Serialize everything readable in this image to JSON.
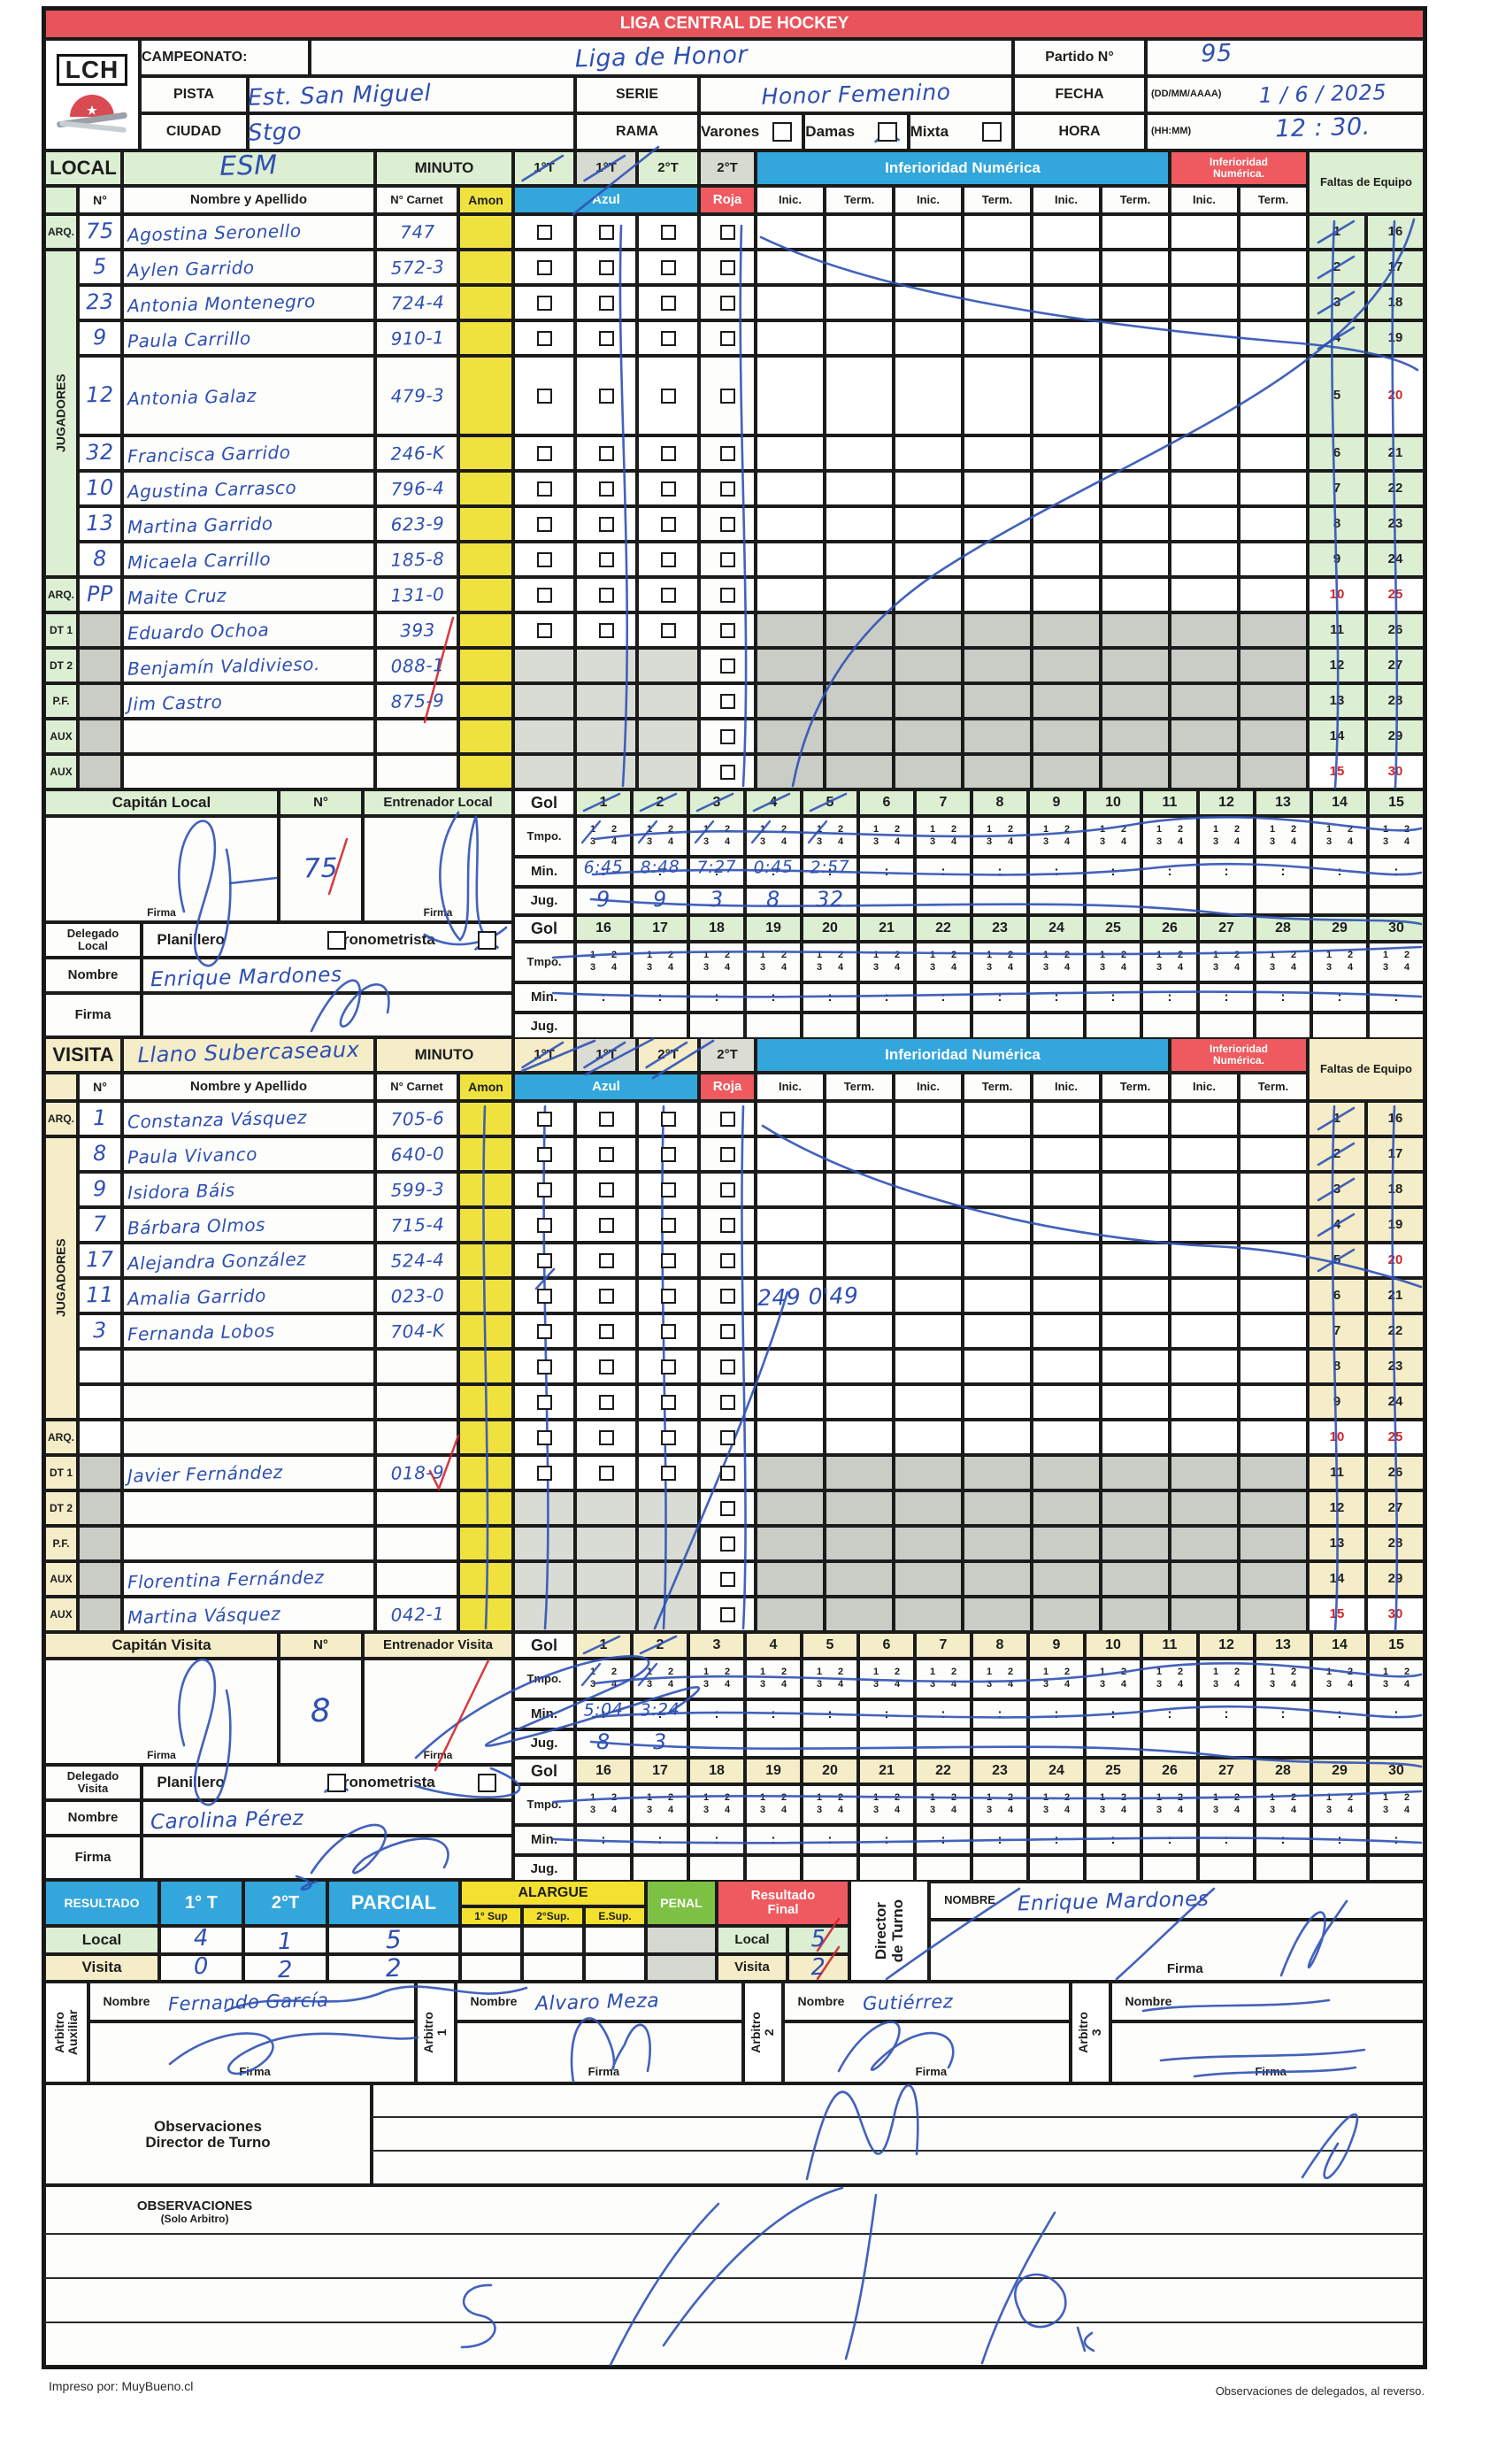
{
  "title": "LIGA CENTRAL DE HOCKEY",
  "logo_text": "LCH",
  "colors": {
    "header_red": "#e8545c",
    "blue": "#33a6db",
    "red": "#ee5a5f",
    "green_light": "#dcefd2",
    "cream": "#f4edc8",
    "gray_cell": "#c9cdc5",
    "amon_yellow": "#f0e23e",
    "alargue_yellow": "#f4e12f",
    "penal_green": "#7cc143",
    "pen_blue": "#2f51b5",
    "pen_red": "#d0262c"
  },
  "header": {
    "campeonato_label": "CAMPEONATO:",
    "campeonato_value": "Liga de Honor",
    "pista_label": "PISTA",
    "pista_value": "Est. San Miguel",
    "ciudad_label": "CIUDAD",
    "ciudad_value": "Stgo",
    "serie_label": "SERIE",
    "serie_value": "Honor Femenino",
    "rama_label": "RAMA",
    "rama_options": [
      {
        "label": "Varones",
        "checked": false
      },
      {
        "label": "Damas",
        "checked": true
      },
      {
        "label": "Mixta",
        "checked": false
      }
    ],
    "partido_label": "Partido N°",
    "partido_value": "95",
    "fecha_label": "FECHA",
    "fecha_format": "(DD/MM/AAAA)",
    "fecha_value": "1 / 6 / 2025",
    "hora_label": "HORA",
    "hora_format": "(HH:MM)",
    "hora_value": "12 : 30."
  },
  "table_labels": {
    "num": "N°",
    "name": "Nombre y Apellido",
    "carnet": "N° Carnet",
    "amon": "Amon",
    "azul": "Azul",
    "roja": "Roja",
    "inic": "Inic.",
    "term": "Term.",
    "inferioridad": "Inferioridad Numérica",
    "inferioridad2": "Inferioridad Numérica.",
    "faltas": "Faltas de Equipo",
    "minuto": "MINUTO",
    "periods": [
      "1°T",
      "1°T",
      "2°T",
      "2°T"
    ],
    "jugadores": "JUGADORES",
    "gol": "Gol",
    "tmpo": "Tmpo.",
    "min": "Min.",
    "jug": "Jug.",
    "nombre": "Nombre",
    "firma": "Firma",
    "planillero": "Planillero",
    "cronometrista": "Cronometrista"
  },
  "faltas_numbers": {
    "red_values": [
      10,
      15,
      20,
      25,
      30
    ]
  },
  "local": {
    "label": "LOCAL",
    "team_name": "ESM",
    "periods_struck": [
      true,
      true,
      false,
      false
    ],
    "faltas_struck_rows": [
      1,
      2,
      3,
      4
    ],
    "players": [
      {
        "role": "ARQ.",
        "num": "75",
        "name": "Agostina Seronello",
        "carnet": "747"
      },
      {
        "role": "",
        "num": "5",
        "name": "Aylen Garrido",
        "carnet": "572-3"
      },
      {
        "role": "",
        "num": "23",
        "name": "Antonia Montenegro",
        "carnet": "724-4"
      },
      {
        "role": "",
        "num": "9",
        "name": "Paula Carrillo",
        "carnet": "910-1"
      },
      {
        "role": "",
        "num": "12",
        "name": "Antonia Galaz",
        "carnet": "479-3"
      },
      {
        "role": "",
        "num": "32",
        "name": "Francisca Garrido",
        "carnet": "246-K"
      },
      {
        "role": "",
        "num": "10",
        "name": "Agustina Carrasco",
        "carnet": "796-4"
      },
      {
        "role": "",
        "num": "13",
        "name": "Martina Garrido",
        "carnet": "623-9"
      },
      {
        "role": "",
        "num": "8",
        "name": "Micaela Carrillo",
        "carnet": "185-8"
      },
      {
        "role": "ARQ.",
        "num": "PP",
        "name": "Maite Cruz",
        "carnet": "131-0"
      },
      {
        "role": "DT 1",
        "num": "",
        "name": "Eduardo Ochoa",
        "carnet": "393"
      },
      {
        "role": "DT 2",
        "num": "",
        "name": "Benjamín Valdivieso.",
        "carnet": "088-1"
      },
      {
        "role": "P.F.",
        "num": "",
        "name": "Jim Castro",
        "carnet": "875-9"
      },
      {
        "role": "AUX",
        "num": "",
        "name": "",
        "carnet": ""
      },
      {
        "role": "AUX",
        "num": "",
        "name": "",
        "carnet": ""
      }
    ],
    "captain_label": "Capitán Local",
    "captain_num": "75",
    "entrenador_label": "Entrenador Local",
    "delegado_label": "Delegado Local",
    "planillero_checked": false,
    "cronometrista_checked": true,
    "delegado_nombre": "Enrique Mardones",
    "goals": {
      "struck": 5,
      "min": [
        "6:45",
        "8:48",
        "7:27",
        "0:45",
        "2:57"
      ],
      "jug": [
        "9",
        "9",
        "3",
        "8",
        "32"
      ]
    }
  },
  "visita": {
    "label": "VISITA",
    "team_name": "Llano Subercaseaux",
    "periods_struck": [
      true,
      true,
      true,
      false
    ],
    "faltas_struck_rows": [
      1,
      2,
      3,
      4,
      5
    ],
    "players": [
      {
        "role": "ARQ.",
        "num": "1",
        "name": "Constanza Vásquez",
        "carnet": "705-6"
      },
      {
        "role": "",
        "num": "8",
        "name": "Paula Vivanco",
        "carnet": "640-0"
      },
      {
        "role": "",
        "num": "9",
        "name": "Isidora Báis",
        "carnet": "599-3"
      },
      {
        "role": "",
        "num": "7",
        "name": "Bárbara Olmos",
        "carnet": "715-4"
      },
      {
        "role": "",
        "num": "17",
        "name": "Alejandra González",
        "carnet": "524-4"
      },
      {
        "role": "",
        "num": "11",
        "name": "Amalia Garrido",
        "carnet": "023-0"
      },
      {
        "role": "",
        "num": "3",
        "name": "Fernanda Lobos",
        "carnet": "704-K"
      },
      {
        "role": "",
        "num": "",
        "name": "",
        "carnet": ""
      },
      {
        "role": "",
        "num": "",
        "name": "",
        "carnet": ""
      },
      {
        "role": "ARQ.",
        "num": "",
        "name": "",
        "carnet": ""
      },
      {
        "role": "DT 1",
        "num": "",
        "name": "Javier Fernández",
        "carnet": "018-9"
      },
      {
        "role": "DT 2",
        "num": "",
        "name": "",
        "carnet": ""
      },
      {
        "role": "P.F.",
        "num": "",
        "name": "",
        "carnet": ""
      },
      {
        "role": "AUX",
        "num": "",
        "name": "Florentina Fernández",
        "carnet": ""
      },
      {
        "role": "AUX",
        "num": "",
        "name": "Martina Vásquez",
        "carnet": "042-1"
      }
    ],
    "captain_label": "Capitán Visita",
    "captain_num": "8",
    "entrenador_label": "Entrenador Visita",
    "delegado_label": "Delegado Visita",
    "planillero_checked": true,
    "cronometrista_checked": false,
    "delegado_nombre": "Carolina Pérez",
    "inferioridad_note": {
      "row": 6,
      "text": "249 0'49"
    },
    "goals": {
      "struck": 2,
      "min": [
        "5:04",
        "3:24"
      ],
      "jug": [
        "8",
        "3"
      ]
    }
  },
  "resultado": {
    "label": "RESULTADO",
    "cols": [
      "1° T",
      "2°T",
      "PARCIAL"
    ],
    "alargue_label": "ALARGUE",
    "alargue_cols": [
      "1° Sup",
      "2°Sup.",
      "E.Sup."
    ],
    "penal_label": "PENAL",
    "final_label": "Resultado Final",
    "rows": [
      {
        "label": "Local",
        "t1": "4",
        "t2": "1",
        "parcial": "5",
        "final": "5"
      },
      {
        "label": "Visita",
        "t1": "0",
        "t2": "2",
        "parcial": "2",
        "final": "2"
      }
    ]
  },
  "director": {
    "label": "Director de Turno",
    "nombre_label": "NOMBRE",
    "nombre_value": "Enrique Mardones",
    "firma_label": "Firma"
  },
  "arbitros": [
    {
      "label": "Arbitro Auxiliar",
      "nombre": "Fernando García"
    },
    {
      "label": "Arbitro 1",
      "nombre": "Alvaro Meza"
    },
    {
      "label": "Arbitro 2",
      "nombre": "Gutiérrez"
    },
    {
      "label": "Arbitro 3",
      "nombre": ""
    }
  ],
  "observaciones": {
    "director_line1": "Observaciones",
    "director_line2": "Director de Turno",
    "solo_line1": "OBSERVACIONES",
    "solo_line2": "(Solo Arbitro)"
  },
  "footer": {
    "left": "Impreso por: MuyBueno.cl",
    "right": "Observaciones de delegados, al reverso."
  }
}
